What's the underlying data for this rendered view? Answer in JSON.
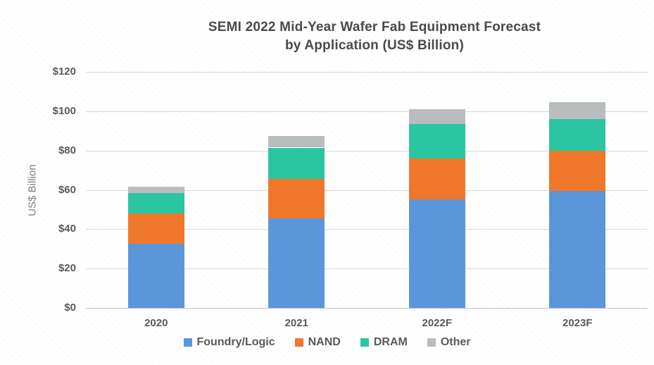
{
  "title": {
    "line1": "SEMI 2022 Mid-Year Wafer Fab Equipment Forecast",
    "line2": "by Application (US$ Billion)"
  },
  "y_axis": {
    "label": "US$ Billion",
    "tick_labels": [
      "$0",
      "$20",
      "$40",
      "$60",
      "$80",
      "$100",
      "$120"
    ]
  },
  "x_axis": {
    "categories": [
      "2020",
      "2021",
      "2022F",
      "2023F"
    ]
  },
  "legend": {
    "items": [
      "Foundry/Logic",
      "NAND",
      "DRAM",
      "Other"
    ]
  },
  "colors": {
    "foundry_logic": "#5B96DB",
    "nand": "#F0782A",
    "dram": "#2BC5A1",
    "other": "#B9BDBE",
    "gridline": "#D9D9D9",
    "axis_text": "#595959",
    "title_text": "#4A4A4A"
  },
  "chart_data": {
    "type": "bar",
    "stacked": true,
    "title": "SEMI 2022 Mid-Year Wafer Fab Equipment Forecast by Application (US$ Billion)",
    "categories": [
      "2020",
      "2021",
      "2022F",
      "2023F"
    ],
    "series": [
      {
        "name": "Foundry/Logic",
        "color": "#5B96DB",
        "values": [
          32.5,
          45.5,
          55,
          59.5
        ]
      },
      {
        "name": "NAND",
        "color": "#F0782A",
        "values": [
          15.5,
          20,
          21,
          20.5
        ]
      },
      {
        "name": "DRAM",
        "color": "#2BC5A1",
        "values": [
          10.5,
          16,
          17.5,
          16
        ]
      },
      {
        "name": "Other",
        "color": "#B9BDBE",
        "values": [
          3,
          6,
          7.5,
          8.5
        ]
      }
    ],
    "totals": [
      61.5,
      87.5,
      101,
      104.5
    ],
    "xlabel": "",
    "ylabel": "US$ Billion",
    "ylim": [
      0,
      120
    ],
    "ytick_step": 20,
    "grid": true,
    "legend_position": "bottom"
  }
}
